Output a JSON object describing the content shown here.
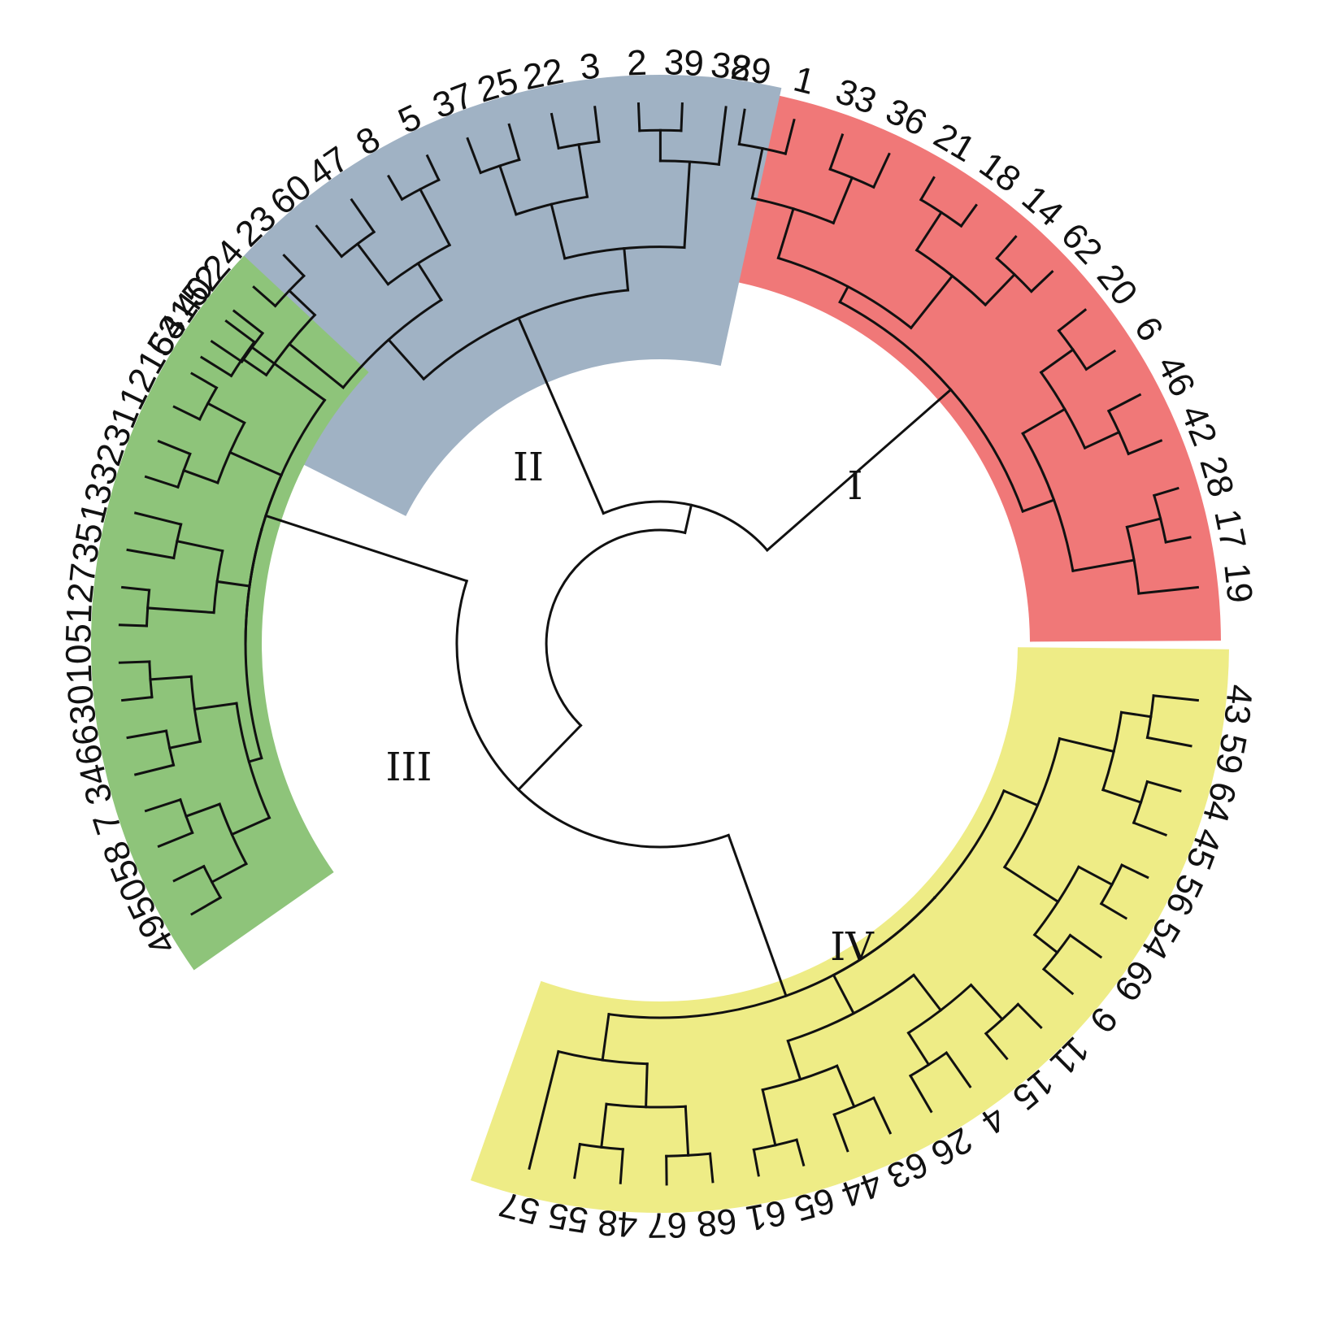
{
  "figure": {
    "type": "circular-dendrogram",
    "clusters": [
      {
        "id": "I",
        "label": "I",
        "color": "#F07878",
        "leaves": [
          "29",
          "1",
          "33",
          "36",
          "21",
          "18",
          "14",
          "62",
          "20",
          "6",
          "46",
          "42",
          "28",
          "17",
          "19"
        ]
      },
      {
        "id": "II",
        "label": "II",
        "color": "#A0B2C4",
        "leaves": [
          "53",
          "40",
          "24",
          "23",
          "60",
          "47",
          "8",
          "5",
          "37",
          "25",
          "22",
          "3",
          "2",
          "39",
          "38"
        ]
      },
      {
        "id": "III",
        "label": "III",
        "color": "#8EC47A",
        "leaves": [
          "49",
          "50",
          "58",
          "7",
          "34",
          "66",
          "30",
          "10",
          "51",
          "27",
          "35",
          "13",
          "32",
          "31",
          "12",
          "16",
          "41",
          "52"
        ]
      },
      {
        "id": "IV",
        "label": "IV",
        "color": "#EEEC86",
        "leaves": [
          "43",
          "59",
          "64",
          "45",
          "56",
          "54",
          "69",
          "9",
          "11",
          "15",
          "4",
          "26",
          "63",
          "44",
          "65",
          "61",
          "68",
          "67",
          "48",
          "55",
          "57"
        ]
      }
    ]
  }
}
